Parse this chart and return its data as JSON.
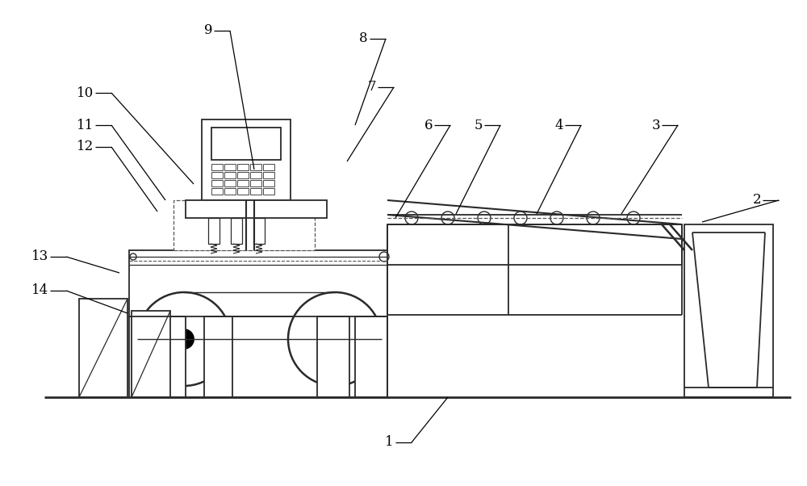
{
  "bg_color": "#ffffff",
  "lc": "#2a2a2a",
  "lw": 1.3,
  "figsize": [
    10.0,
    6.02
  ],
  "dpi": 100,
  "labels_data": [
    [
      9,
      265,
      38,
      20,
      265,
      38,
      315,
      210
    ],
    [
      8,
      458,
      48,
      20,
      458,
      48,
      440,
      155
    ],
    [
      7,
      468,
      108,
      20,
      468,
      108,
      430,
      200
    ],
    [
      6,
      538,
      155,
      20,
      538,
      155,
      490,
      270
    ],
    [
      5,
      600,
      155,
      20,
      600,
      155,
      565,
      265
    ],
    [
      4,
      700,
      155,
      20,
      700,
      155,
      665,
      265
    ],
    [
      3,
      820,
      155,
      20,
      820,
      155,
      770,
      265
    ],
    [
      2,
      945,
      248,
      20,
      945,
      248,
      870,
      275
    ],
    [
      1,
      490,
      548,
      20,
      490,
      548,
      555,
      492
    ],
    [
      10,
      118,
      115,
      20,
      118,
      115,
      240,
      228
    ],
    [
      11,
      118,
      155,
      20,
      118,
      155,
      205,
      248
    ],
    [
      12,
      118,
      182,
      20,
      118,
      182,
      195,
      262
    ],
    [
      13,
      62,
      318,
      20,
      62,
      318,
      148,
      338
    ],
    [
      14,
      62,
      360,
      20,
      62,
      360,
      158,
      388
    ]
  ]
}
